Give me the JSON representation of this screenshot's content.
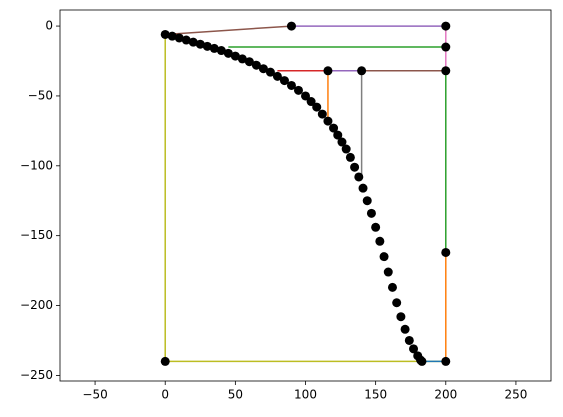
{
  "chart_data": {
    "type": "line",
    "xlim": [
      -75,
      275
    ],
    "ylim": [
      -254,
      11.5
    ],
    "xticks": [
      {
        "value": -50,
        "label": "−50"
      },
      0,
      50,
      100,
      150,
      200,
      250
    ],
    "yticks": [
      0,
      {
        "value": -50,
        "label": "−50"
      },
      {
        "value": -100,
        "label": "−100"
      },
      {
        "value": -150,
        "label": "−150"
      },
      {
        "value": -200,
        "label": "−200"
      },
      {
        "value": -250,
        "label": "−250"
      }
    ],
    "series": [
      {
        "color": "#8c564b",
        "x": [
          0,
          90
        ],
        "values": [
          -6,
          0
        ]
      },
      {
        "color": "#9467bd",
        "x": [
          90,
          200
        ],
        "values": [
          0,
          0
        ]
      },
      {
        "color": "#e377c2",
        "x": [
          200,
          200
        ],
        "values": [
          0,
          -15
        ]
      },
      {
        "color": "#2ca02c",
        "x": [
          45,
          200
        ],
        "values": [
          -15,
          -15
        ]
      },
      {
        "color": "#e377c2",
        "x": [
          200,
          200
        ],
        "values": [
          -15,
          -32
        ]
      },
      {
        "color": "#d62728",
        "x": [
          80,
          116
        ],
        "values": [
          -32,
          -32
        ]
      },
      {
        "color": "#9467bd",
        "x": [
          116,
          140
        ],
        "values": [
          -32,
          -32
        ]
      },
      {
        "color": "#8c564b",
        "x": [
          140,
          200
        ],
        "values": [
          -32,
          -32
        ]
      },
      {
        "color": "#ff7f0e",
        "x": [
          116,
          116
        ],
        "values": [
          -32,
          -65
        ]
      },
      {
        "color": "#7f7f7f",
        "x": [
          140,
          140
        ],
        "values": [
          -32,
          -110
        ]
      },
      {
        "color": "#2ca02c",
        "x": [
          200,
          200
        ],
        "values": [
          -32,
          -162
        ]
      },
      {
        "color": "#ff7f0e",
        "x": [
          200,
          200
        ],
        "values": [
          -162,
          -240
        ]
      },
      {
        "color": "#bcbd22",
        "x": [
          0,
          0,
          200
        ],
        "values": [
          -6,
          -240,
          -240
        ]
      },
      {
        "color": "#1f77b4",
        "x": [
          183,
          200
        ],
        "values": [
          -240,
          -240
        ]
      }
    ],
    "points": {
      "color": "#000000",
      "x": [
        90,
        200,
        200,
        116,
        140,
        200,
        200,
        200,
        0,
        0,
        5,
        10,
        15,
        20,
        25,
        30,
        35,
        40,
        45,
        50,
        55,
        60,
        65,
        70,
        75,
        80,
        85,
        90,
        95,
        100,
        104,
        108,
        112,
        116,
        120,
        123,
        126,
        129,
        132,
        135,
        138,
        141,
        144,
        147,
        150,
        153,
        156,
        159,
        162,
        165,
        168,
        171,
        174,
        177,
        180,
        182,
        183
      ],
      "values": [
        0,
        0,
        -15,
        -32,
        -32,
        -32,
        -162,
        -240,
        -240,
        -6,
        -7.2,
        -8.5,
        -10,
        -11.5,
        -13,
        -14.5,
        -16,
        -17.5,
        -19.5,
        -21.5,
        -23.5,
        -25.5,
        -28,
        -30.5,
        -33,
        -36,
        -39,
        -42.5,
        -46,
        -50,
        -54,
        -58,
        -63,
        -68,
        -73,
        -78,
        -83,
        -88,
        -94,
        -101,
        -108,
        -116,
        -125,
        -134,
        -144,
        -154,
        -165,
        -176,
        -187,
        -198,
        -208,
        -217,
        -225,
        -231,
        -236,
        -239,
        -240
      ]
    }
  }
}
